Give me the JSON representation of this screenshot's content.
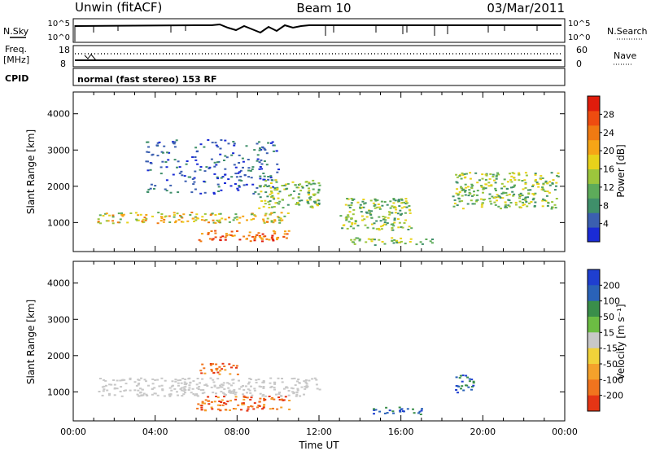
{
  "header": {
    "station": "Unwin (fitACF)",
    "beam": "Beam 10",
    "date": "03/Mar/2011"
  },
  "ops": {
    "nsky_label": "N.Sky",
    "nsky_top_tick": "10^5",
    "nsky_bottom_tick": "10^0",
    "nsearch_label": "N.Search",
    "nsearch_top_tick": "10^5",
    "nsearch_bottom_tick": "10^0",
    "freq_label_1": "Freq.",
    "freq_label_2": "[MHz]",
    "freq_top_tick": "18",
    "freq_bottom_tick": "8",
    "nave_label": "Nave",
    "nave_top_tick": "60",
    "nave_bottom_tick": "0",
    "cpid_label": "CPID",
    "cpid_text": "normal (fast stereo) 153 RF"
  },
  "chart_data": [
    {
      "type": "heatmap",
      "panel": "power",
      "ylabel": "Slant Range [km]",
      "ylim": [
        200,
        4600
      ],
      "yticks": [
        "1000",
        "2000",
        "3000",
        "4000"
      ],
      "xlim": [
        "00:00",
        "24:00"
      ],
      "colorbar": {
        "label": "Power [dB]",
        "ticks": [
          "4",
          "8",
          "12",
          "16",
          "20",
          "24",
          "28"
        ],
        "range": [
          0,
          32
        ],
        "colors": [
          "#1a2bd6",
          "#3b5fb0",
          "#3f8f6a",
          "#5dab5a",
          "#9cc63c",
          "#e8d21a",
          "#f6a516",
          "#f07a12",
          "#ee4c10",
          "#e01c0c"
        ]
      },
      "echo_regions": [
        {
          "t_start": "01:10",
          "t_end": "10:30",
          "range_km": [
            1000,
            1300
          ],
          "level": "strong"
        },
        {
          "t_start": "06:00",
          "t_end": "10:30",
          "range_km": [
            500,
            800
          ],
          "level": "strongest"
        },
        {
          "t_start": "03:30",
          "t_end": "10:00",
          "range_km": [
            1800,
            3300
          ],
          "level": "weak"
        },
        {
          "t_start": "09:00",
          "t_end": "12:00",
          "range_km": [
            1400,
            2200
          ],
          "level": "moderate"
        },
        {
          "t_start": "13:00",
          "t_end": "16:30",
          "range_km": [
            800,
            1700
          ],
          "level": "moderate"
        },
        {
          "t_start": "13:30",
          "t_end": "17:30",
          "range_km": [
            400,
            600
          ],
          "level": "moderate"
        },
        {
          "t_start": "18:30",
          "t_end": "23:40",
          "range_km": [
            1400,
            2400
          ],
          "level": "moderate"
        }
      ]
    },
    {
      "type": "heatmap",
      "panel": "velocity",
      "ylabel": "Slant Range [km]",
      "ylim": [
        200,
        4600
      ],
      "yticks": [
        "1000",
        "2000",
        "3000",
        "4000"
      ],
      "xlim": [
        "00:00",
        "24:00"
      ],
      "xlabel": "Time UT",
      "xticks": [
        "00:00",
        "04:00",
        "08:00",
        "12:00",
        "16:00",
        "20:00",
        "00:00"
      ],
      "colorbar": {
        "label": "Velocity [m s⁻¹]",
        "ticks": [
          "200",
          "100",
          "50",
          "15",
          "-15",
          "-50",
          "-100",
          "-200"
        ],
        "colors": [
          "#1f3fd0",
          "#2a62b8",
          "#3a8e4a",
          "#6cbd43",
          "#c8c8c8",
          "#f1d23a",
          "#f4a12b",
          "#f1741e",
          "#e53515"
        ]
      },
      "echo_regions": [
        {
          "t_start": "01:10",
          "t_end": "12:00",
          "range_km": [
            900,
            1400
          ],
          "level": "ground_scatter"
        },
        {
          "t_start": "06:00",
          "t_end": "10:30",
          "range_km": [
            500,
            900
          ],
          "level": "negative_velocity"
        },
        {
          "t_start": "06:00",
          "t_end": "08:00",
          "range_km": [
            1500,
            1800
          ],
          "level": "negative_velocity"
        },
        {
          "t_start": "14:30",
          "t_end": "17:00",
          "range_km": [
            400,
            600
          ],
          "level": "positive_velocity"
        },
        {
          "t_start": "18:30",
          "t_end": "19:30",
          "range_km": [
            1000,
            1500
          ],
          "level": "positive_velocity"
        }
      ]
    }
  ]
}
